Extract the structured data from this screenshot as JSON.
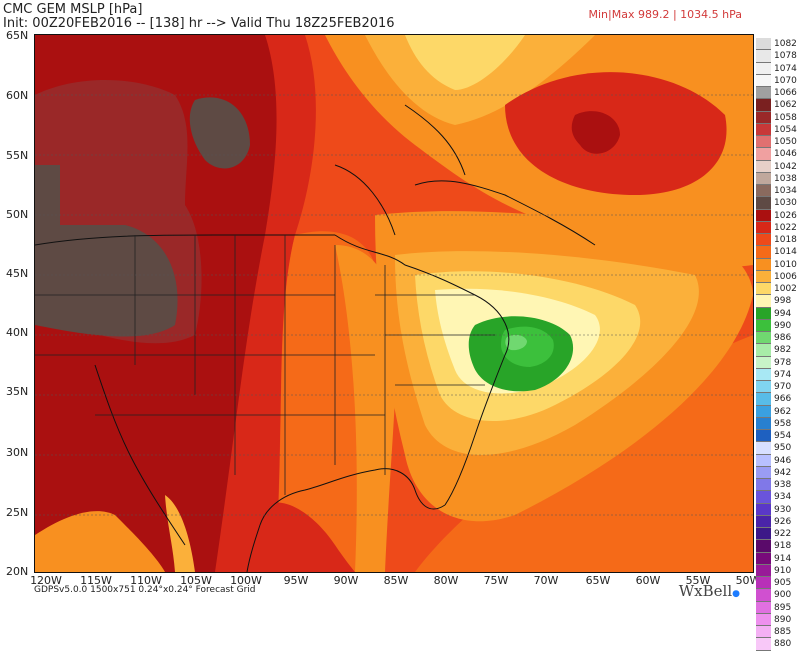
{
  "header": {
    "title": "CMC GEM MSLP [hPa]",
    "subtitle": "Init: 00Z20FEB2016 -- [138] hr --> Valid Thu 18Z25FEB2016",
    "minmax": "Min|Max 989.2 | 1034.5 hPa"
  },
  "axes": {
    "lat_labels": [
      "65N",
      "60N",
      "55N",
      "50N",
      "45N",
      "40N",
      "35N",
      "30N",
      "25N",
      "20N"
    ],
    "lon_labels": [
      "120W",
      "115W",
      "110W",
      "105W",
      "100W",
      "95W",
      "90W",
      "85W",
      "80W",
      "75W",
      "70W",
      "65W",
      "60W",
      "55W",
      "50W"
    ]
  },
  "footer": {
    "info": "GDPSv5.0.0 1500x751 0.24°x0.24° Forecast Grid",
    "brand": "WxBell"
  },
  "legend": [
    {
      "label": "1082",
      "color": "#dcdcdc"
    },
    {
      "label": "1078",
      "color": "#e8e8e8"
    },
    {
      "label": "1074",
      "color": "#f0f0f0"
    },
    {
      "label": "1070",
      "color": "#f6f6f6"
    },
    {
      "label": "1066",
      "color": "#a0a0a0"
    },
    {
      "label": "1062",
      "color": "#7a2020"
    },
    {
      "label": "1058",
      "color": "#9a2828"
    },
    {
      "label": "1054",
      "color": "#c83838"
    },
    {
      "label": "1050",
      "color": "#e07070"
    },
    {
      "label": "1046",
      "color": "#f0a0a0"
    },
    {
      "label": "1042",
      "color": "#e6d0c8"
    },
    {
      "label": "1038",
      "color": "#c0a89c"
    },
    {
      "label": "1034",
      "color": "#8a6a5e"
    },
    {
      "label": "1030",
      "color": "#5e4a44"
    },
    {
      "label": "1026",
      "color": "#aa1010"
    },
    {
      "label": "1022",
      "color": "#d82818"
    },
    {
      "label": "1018",
      "color": "#ee4a1a"
    },
    {
      "label": "1014",
      "color": "#f56a18"
    },
    {
      "label": "1010",
      "color": "#f89020"
    },
    {
      "label": "1006",
      "color": "#fbb03a"
    },
    {
      "label": "1002",
      "color": "#fdd868"
    },
    {
      "label": "998",
      "color": "#fff6b4"
    },
    {
      "label": "994",
      "color": "#28a428"
    },
    {
      "label": "990",
      "color": "#3cc03c"
    },
    {
      "label": "986",
      "color": "#70d870"
    },
    {
      "label": "982",
      "color": "#a8eca8"
    },
    {
      "label": "978",
      "color": "#c8f4c8"
    },
    {
      "label": "974",
      "color": "#a8e8f4"
    },
    {
      "label": "970",
      "color": "#80d4f0"
    },
    {
      "label": "966",
      "color": "#58bce8"
    },
    {
      "label": "962",
      "color": "#3aa0e0"
    },
    {
      "label": "958",
      "color": "#2880d0"
    },
    {
      "label": "954",
      "color": "#1e60c0"
    },
    {
      "label": "950",
      "color": "#d8e0ff"
    },
    {
      "label": "946",
      "color": "#b8c0ff"
    },
    {
      "label": "942",
      "color": "#9a9cf4"
    },
    {
      "label": "938",
      "color": "#8078e8"
    },
    {
      "label": "934",
      "color": "#6a54dc"
    },
    {
      "label": "930",
      "color": "#5a38c8"
    },
    {
      "label": "926",
      "color": "#4a24a8"
    },
    {
      "label": "922",
      "color": "#3c1888"
    },
    {
      "label": "918",
      "color": "#5a0a6a"
    },
    {
      "label": "914",
      "color": "#780a7a"
    },
    {
      "label": "910",
      "color": "#981a98"
    },
    {
      "label": "905",
      "color": "#b830b8"
    },
    {
      "label": "900",
      "color": "#d050d0"
    },
    {
      "label": "895",
      "color": "#e070e0"
    },
    {
      "label": "890",
      "color": "#ee90ee"
    },
    {
      "label": "885",
      "color": "#f4b0f4"
    },
    {
      "label": "880",
      "color": "#f8c8f8"
    }
  ]
}
